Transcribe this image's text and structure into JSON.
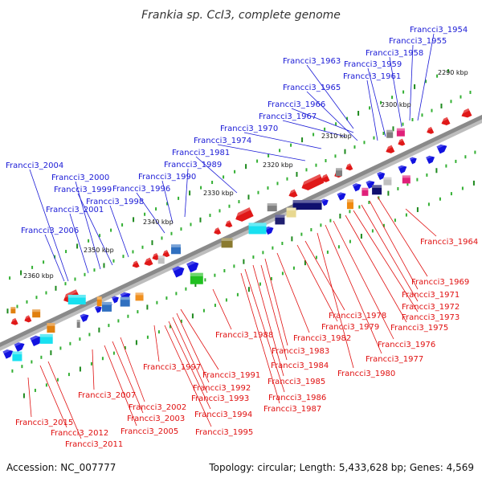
{
  "title": "Frankia sp. CcI3, complete genome",
  "footer": {
    "accession": "Accession: NC_007777",
    "topology": "Topology: circular; Length: 5,433,628 bp; Genes: 4,569"
  },
  "colors": {
    "forward_label": "#1a1ad6",
    "reverse_label": "#e01010",
    "backbone": "#8a8a8a",
    "tick": "#20a020"
  },
  "kbp_ticks": [
    "2290 kbp",
    "2300 kbp",
    "2310 kbp",
    "2320 kbp",
    "2330 kbp",
    "2340 kbp",
    "2350 kbp",
    "2360 kbp"
  ],
  "forward_labels": [
    "Francci3_1954",
    "Francci3_1955",
    "Francci3_1958",
    "Francci3_1959",
    "Francci3_1961",
    "Francci3_1963",
    "Francci3_1965",
    "Francci3_1966",
    "Francci3_1967",
    "Francci3_1970",
    "Francci3_1974",
    "Francci3_1981",
    "Francci3_1989",
    "Francci3_1990",
    "Francci3_1996",
    "Francci3_1998",
    "Francci3_1999",
    "Francci3_2000",
    "Francci3_2001",
    "Francci3_2004",
    "Francci3_2006"
  ],
  "reverse_labels": [
    "Francci3_1964",
    "Francci3_1969",
    "Francci3_1971",
    "Francci3_1972",
    "Francci3_1973",
    "Francci3_1975",
    "Francci3_1976",
    "Francci3_1977",
    "Francci3_1978",
    "Francci3_1979",
    "Francci3_1980",
    "Francci3_1982",
    "Francci3_1983",
    "Francci3_1984",
    "Francci3_1985",
    "Francci3_1986",
    "Francci3_1987",
    "Francci3_1988",
    "Francci3_1991",
    "Francci3_1992",
    "Francci3_1993",
    "Francci3_1994",
    "Francci3_1995",
    "Francci3_1997",
    "Francci3_2002",
    "Francci3_2003",
    "Francci3_2005",
    "Francci3_2007",
    "Francci3_2011",
    "Francci3_2012",
    "Francci3_2015"
  ]
}
